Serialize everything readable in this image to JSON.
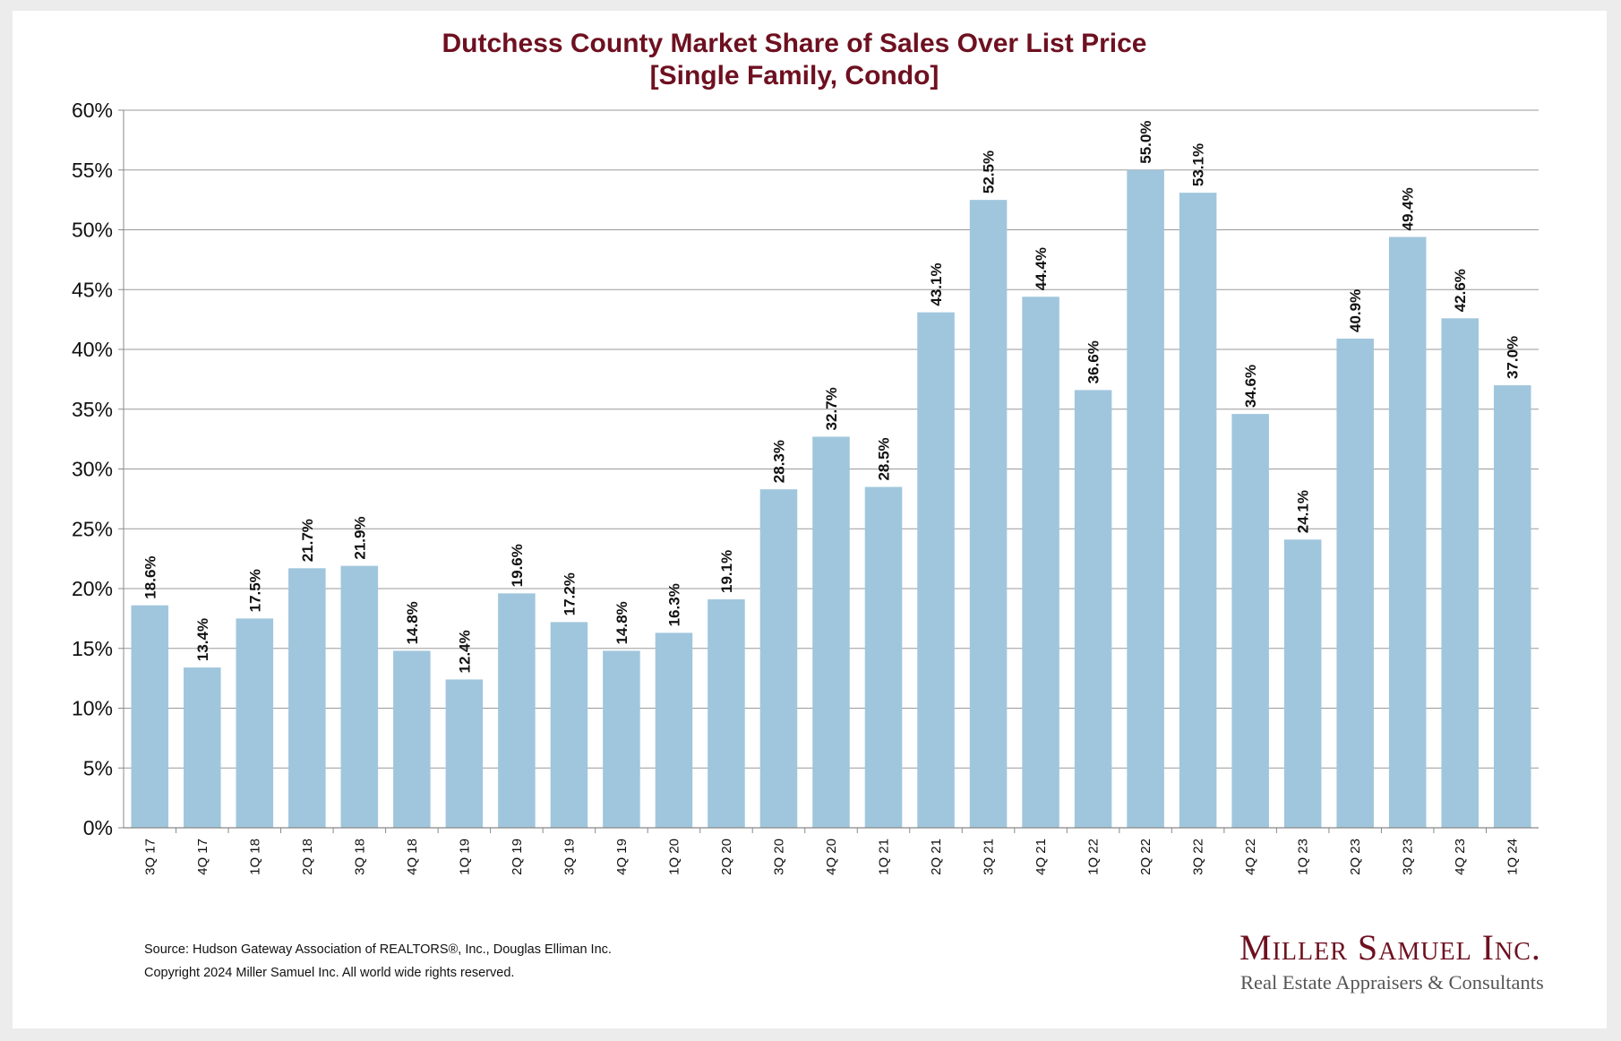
{
  "chart_data": {
    "type": "bar",
    "title": "Dutchess County Market Share of Sales Over List Price",
    "subtitle": "[Single Family, Condo]",
    "xlabel": "",
    "ylabel": "",
    "ylim": [
      0,
      60
    ],
    "ytick_step": 5,
    "ytick_labels": [
      "0%",
      "5%",
      "10%",
      "15%",
      "20%",
      "25%",
      "30%",
      "35%",
      "40%",
      "45%",
      "50%",
      "55%",
      "60%"
    ],
    "grid": true,
    "categories": [
      "3Q 17",
      "4Q 17",
      "1Q 18",
      "2Q 18",
      "3Q 18",
      "4Q 18",
      "1Q 19",
      "2Q 19",
      "3Q 19",
      "4Q 19",
      "1Q 20",
      "2Q 20",
      "3Q 20",
      "4Q 20",
      "1Q 21",
      "2Q 21",
      "3Q 21",
      "4Q 21",
      "1Q 22",
      "2Q 22",
      "3Q 22",
      "4Q 22",
      "1Q 23",
      "2Q 23",
      "3Q 23",
      "4Q 23",
      "1Q 24"
    ],
    "values": [
      18.6,
      13.4,
      17.5,
      21.7,
      21.9,
      14.8,
      12.4,
      19.6,
      17.2,
      14.8,
      16.3,
      19.1,
      28.3,
      32.7,
      28.5,
      43.1,
      52.5,
      44.4,
      36.6,
      55.0,
      53.1,
      34.6,
      24.1,
      40.9,
      49.4,
      42.6,
      37.0
    ],
    "data_labels": [
      "18.6%",
      "13.4%",
      "17.5%",
      "21.7%",
      "21.9%",
      "14.8%",
      "12.4%",
      "19.6%",
      "17.2%",
      "14.8%",
      "16.3%",
      "19.1%",
      "28.3%",
      "32.7%",
      "28.5%",
      "43.1%",
      "52.5%",
      "44.4%",
      "36.6%",
      "55.0%",
      "53.1%",
      "34.6%",
      "24.1%",
      "40.9%",
      "49.4%",
      "42.6%",
      "37.0%"
    ]
  },
  "colors": {
    "bar": "#a0c6dd",
    "title": "#6e1020",
    "grid": "#9a9a9a",
    "axis": "#888888",
    "text": "#111111"
  },
  "footer": {
    "source": "Source: Hudson Gateway Association of REALTORS®, Inc., Douglas Elliman Inc.",
    "copyright": "Copyright 2024 Miller Samuel Inc.  All world wide rights reserved."
  },
  "brand": {
    "name": "Miller Samuel Inc.",
    "tagline": "Real Estate Appraisers & Consultants"
  }
}
